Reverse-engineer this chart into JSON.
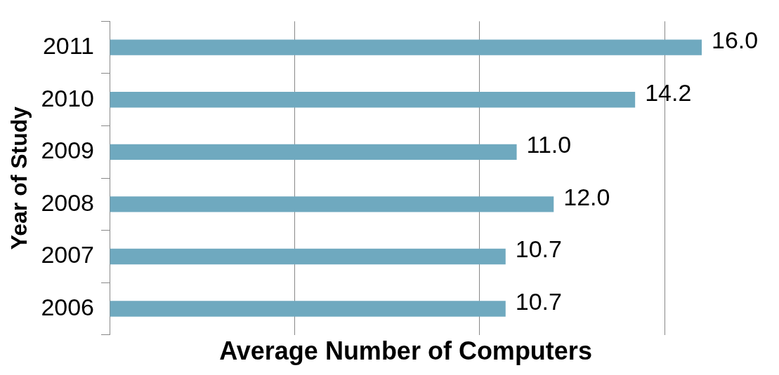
{
  "chart_data": {
    "type": "bar",
    "orientation": "horizontal",
    "xlabel": "Average Number of Computers",
    "ylabel": "Year of Study",
    "categories": [
      "2011",
      "2010",
      "2009",
      "2008",
      "2007",
      "2006"
    ],
    "values": [
      16.0,
      14.2,
      11.0,
      12.0,
      10.7,
      10.7
    ],
    "value_labels": [
      "16.0",
      "14.2",
      "11.0",
      "12.0",
      "10.7",
      "10.7"
    ],
    "color": "#6fa9bf",
    "xticks": [
      {
        "value": 0,
        "label": null
      },
      {
        "value": 5,
        "label": null
      },
      {
        "value": 10,
        "label": null
      },
      {
        "value": 15,
        "label": null
      }
    ],
    "grid": "x",
    "tick_labels": "y",
    "legend": false
  }
}
